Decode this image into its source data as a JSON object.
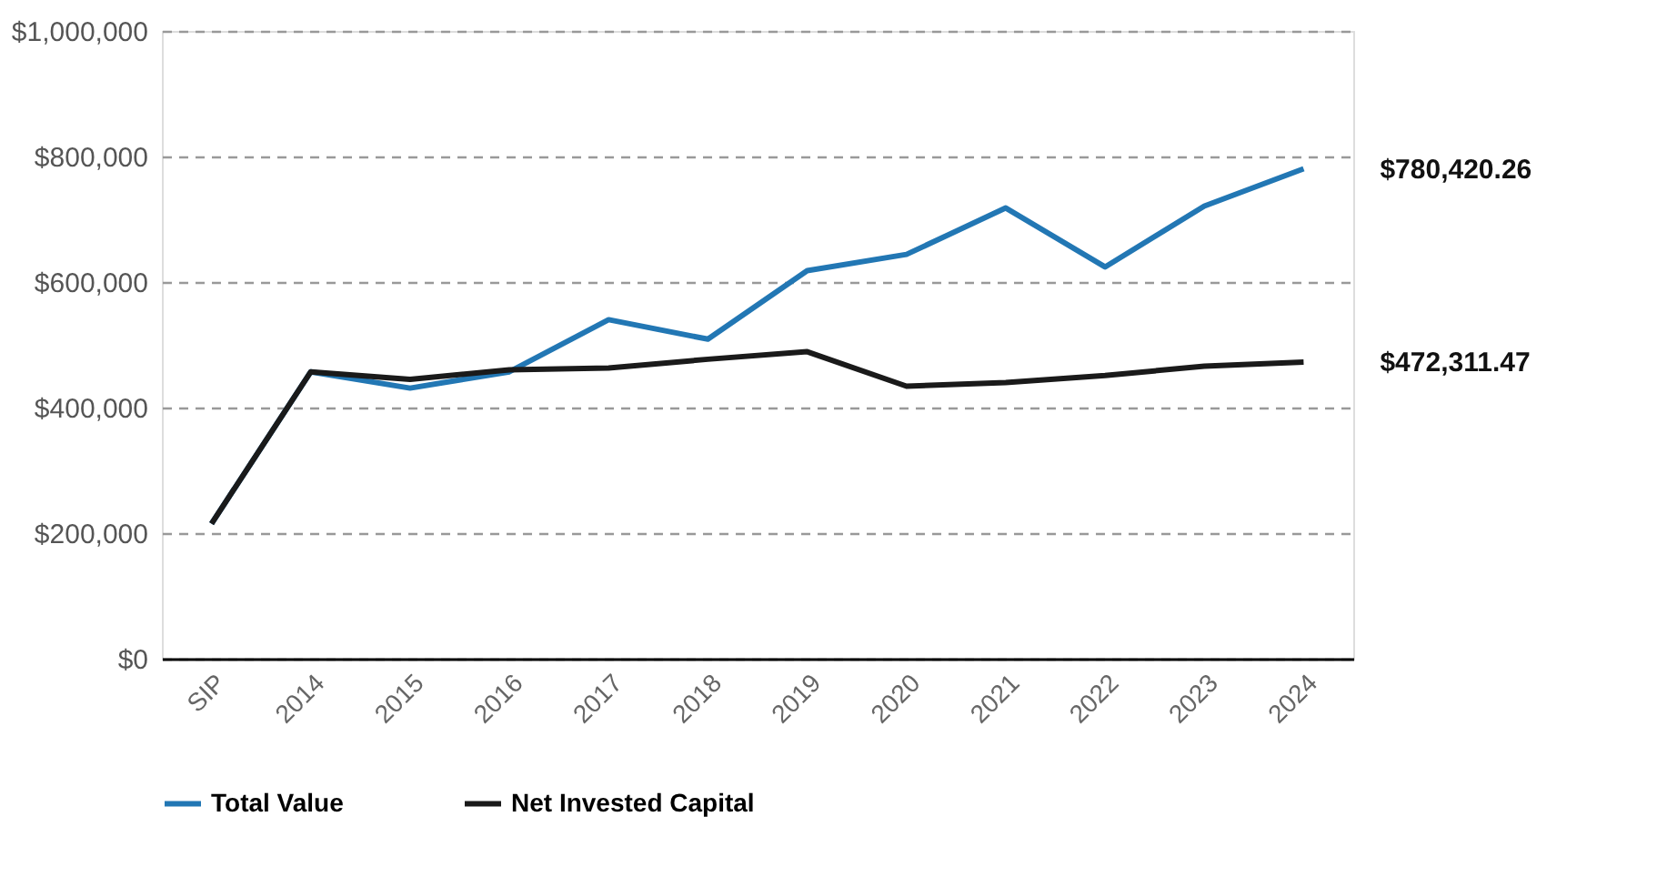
{
  "chart_data": {
    "type": "line",
    "categories": [
      "SIP",
      "2014",
      "2015",
      "2016",
      "2017",
      "2018",
      "2019",
      "2020",
      "2021",
      "2022",
      "2023",
      "2024"
    ],
    "series": [
      {
        "name": "Total Value",
        "color": "#2277b4",
        "values": [
          215000,
          457000,
          431000,
          457000,
          540000,
          509000,
          618000,
          644000,
          718000,
          624000,
          721000,
          780420.26
        ]
      },
      {
        "name": "Net Invested Capital",
        "color": "#1a1a1a",
        "values": [
          215000,
          457000,
          445000,
          460000,
          463000,
          477000,
          489000,
          434000,
          440000,
          451000,
          466000,
          472311.47
        ]
      }
    ],
    "ylim": [
      0,
      1000000
    ],
    "yticks": [
      {
        "value": 0,
        "label": "$0"
      },
      {
        "value": 200000,
        "label": "$200,000"
      },
      {
        "value": 400000,
        "label": "$400,000"
      },
      {
        "value": 600000,
        "label": "$600,000"
      },
      {
        "value": 800000,
        "label": "$800,000"
      },
      {
        "value": 1000000,
        "label": "$1,000,000"
      }
    ],
    "grid": "y",
    "legend": "bottom",
    "marker": "none",
    "line_style": "solid",
    "annotations": [
      "$780,420.26",
      "$472,311.47"
    ]
  }
}
